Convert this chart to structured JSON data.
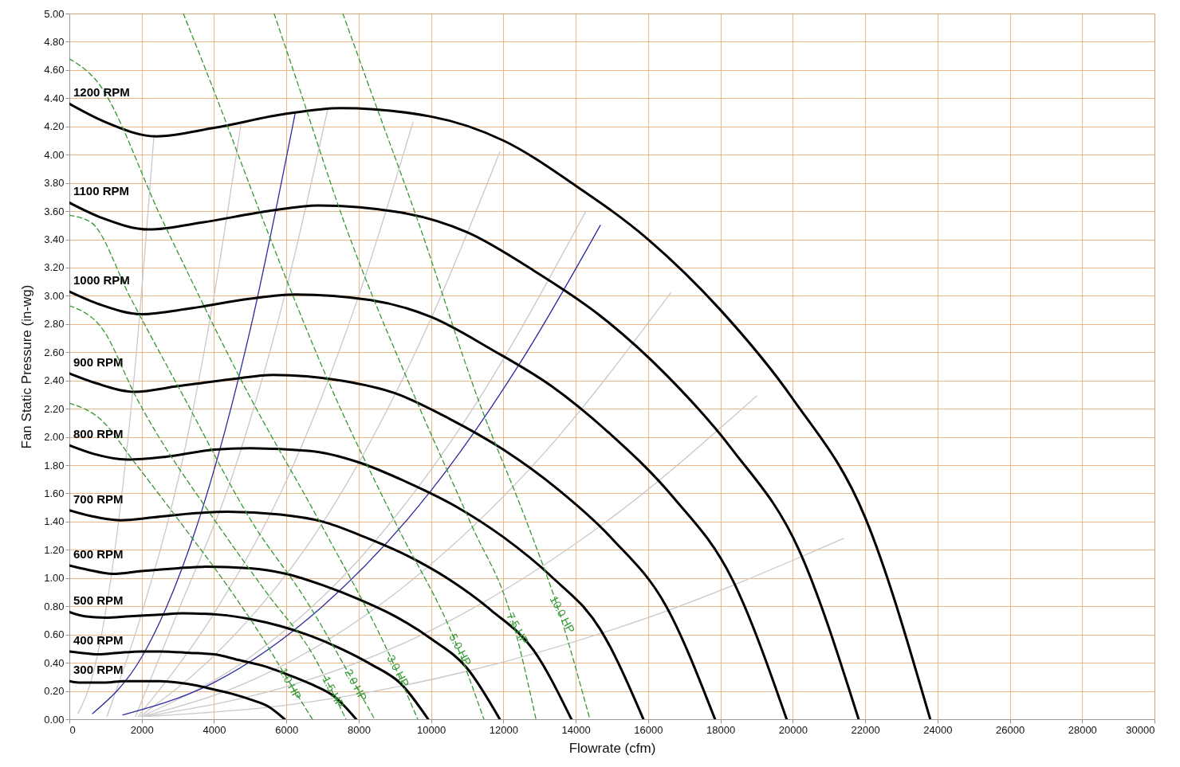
{
  "chart_data": {
    "type": "line",
    "xlabel": "Flowrate (cfm)",
    "ylabel": "Fan Static Pressure (in-wg)",
    "xlim": [
      0,
      30000
    ],
    "ylim": [
      0,
      5
    ],
    "xticks": [
      0,
      2000,
      4000,
      6000,
      8000,
      10000,
      12000,
      14000,
      16000,
      18000,
      20000,
      22000,
      24000,
      26000,
      28000,
      30000
    ],
    "yticks": [
      {
        "value": 0,
        "label": "0.00"
      },
      {
        "value": 0.2,
        "label": "0.20"
      },
      {
        "value": 0.4,
        "label": "0.40"
      },
      {
        "value": 0.6,
        "label": "0.60"
      },
      {
        "value": 0.8,
        "label": "0.80"
      },
      {
        "value": 1,
        "label": "1.00"
      },
      {
        "value": 1.2,
        "label": "1.20"
      },
      {
        "value": 1.4,
        "label": "1.40"
      },
      {
        "value": 1.6,
        "label": "1.60"
      },
      {
        "value": 1.8,
        "label": "1.80"
      },
      {
        "value": 2,
        "label": "2.00"
      },
      {
        "value": 2.2,
        "label": "2.20"
      },
      {
        "value": 2.4,
        "label": "2.40"
      },
      {
        "value": 2.6,
        "label": "2.60"
      },
      {
        "value": 2.8,
        "label": "2.80"
      },
      {
        "value": 3,
        "label": "3.00"
      },
      {
        "value": 3.2,
        "label": "3.20"
      },
      {
        "value": 3.4,
        "label": "3.40"
      },
      {
        "value": 3.6,
        "label": "3.60"
      },
      {
        "value": 3.8,
        "label": "3.80"
      },
      {
        "value": 4,
        "label": "4.00"
      },
      {
        "value": 4.2,
        "label": "4.20"
      },
      {
        "value": 4.4,
        "label": "4.40"
      },
      {
        "value": 4.6,
        "label": "4.60"
      },
      {
        "value": 4.8,
        "label": "4.80"
      },
      {
        "value": 5,
        "label": "5.00"
      }
    ],
    "grid": true,
    "line_style": "solid",
    "series": [
      {
        "color": "#c8c8c8",
        "x": [
          240,
          600,
          1200,
          1800,
          2340
        ],
        "values": [
          0.04,
          0.27,
          1.09,
          2.45,
          4.14
        ]
      },
      {
        "color": "#c8c8c8",
        "x": [
          1040,
          2000,
          3000,
          4000,
          4740
        ],
        "values": [
          0.02,
          0.75,
          1.69,
          3.0,
          4.21
        ]
      },
      {
        "color": "#c8c8c8",
        "x": [
          1830,
          3000,
          4500,
          6000,
          7140
        ],
        "values": [
          0.02,
          0.76,
          1.72,
          3.05,
          4.32
        ]
      },
      {
        "color": "#c8c8c8",
        "x": [
          1900,
          4000,
          6000,
          8000,
          9500
        ],
        "values": [
          0.02,
          0.75,
          1.69,
          3.0,
          4.23
        ]
      },
      {
        "color": "#c8c8c8",
        "x": [
          1950,
          4000,
          7000,
          10000,
          11900
        ],
        "values": [
          0.02,
          0.45,
          1.39,
          2.84,
          4.02
        ]
      },
      {
        "color": "#c8c8c8",
        "x": [
          2000,
          5000,
          8000,
          11000,
          14280
        ],
        "values": [
          0.02,
          0.44,
          1.13,
          2.14,
          3.6
        ]
      },
      {
        "color": "#c8c8c8",
        "x": [
          2050,
          5000,
          9000,
          13000,
          16620
        ],
        "values": [
          0.02,
          0.27,
          0.89,
          1.85,
          3.02
        ]
      },
      {
        "color": "#c8c8c8",
        "x": [
          2100,
          6000,
          10000,
          15000,
          19000
        ],
        "values": [
          0.02,
          0.23,
          0.63,
          1.43,
          2.29
        ]
      },
      {
        "color": "#c8c8c8",
        "x": [
          2150,
          6000,
          11000,
          16000,
          21400
        ],
        "values": [
          0.02,
          0.1,
          0.34,
          0.72,
          1.28
        ]
      },
      {
        "color": "#2b2b9e",
        "x": [
          640,
          2000,
          3500,
          5000,
          6240
        ],
        "values": [
          0.04,
          0.44,
          1.35,
          2.76,
          4.29
        ]
      },
      {
        "color": "#2b2b9e",
        "x": [
          1480,
          4000,
          7000,
          10000,
          12500,
          14680
        ],
        "values": [
          0.03,
          0.26,
          0.8,
          1.62,
          2.54,
          3.5
        ]
      },
      {
        "name": "1.0 HP",
        "color": "#339933",
        "line_style": "dashed",
        "x": [
          0,
          840,
          1830,
          3110,
          4300,
          5380,
          5970,
          6720
        ],
        "values": [
          2.24,
          2.13,
          1.81,
          1.38,
          0.97,
          0.56,
          0.31,
          0
        ]
      },
      {
        "name": "1.5 HP",
        "color": "#339933",
        "line_style": "dashed",
        "x": [
          0,
          930,
          1830,
          4100,
          5500,
          6770,
          7160,
          7650
        ],
        "values": [
          2.93,
          2.76,
          2.29,
          1.38,
          0.88,
          0.44,
          0.25,
          0
        ]
      },
      {
        "name": "2.0 HP",
        "color": "#339933",
        "line_style": "dashed",
        "x": [
          0,
          600,
          1700,
          3150,
          5090,
          6500,
          7780,
          8440
        ],
        "values": [
          3.57,
          3.52,
          2.98,
          2.29,
          1.38,
          0.86,
          0.3,
          0
        ]
      },
      {
        "name": "3.0 HP",
        "color": "#339933",
        "line_style": "dashed",
        "x": [
          0,
          730,
          2600,
          4980,
          6960,
          8950,
          9630
        ],
        "values": [
          4.68,
          4.53,
          3.52,
          2.29,
          1.38,
          0.4,
          0
        ]
      },
      {
        "name": "5.0 HP",
        "color": "#339933",
        "line_style": "dashed",
        "x": [
          3150,
          3880,
          5380,
          7340,
          9040,
          10670,
          11460
        ],
        "values": [
          5.0,
          4.53,
          3.52,
          2.29,
          1.38,
          0.55,
          0
        ]
      },
      {
        "name": "7.5 HP",
        "color": "#339933",
        "line_style": "dashed",
        "x": [
          5660,
          6280,
          7600,
          9540,
          11110,
          12250,
          12900
        ],
        "values": [
          5.0,
          4.53,
          3.52,
          2.29,
          1.38,
          0.7,
          0
        ]
      },
      {
        "name": "10.0 HP",
        "color": "#339933",
        "line_style": "dashed",
        "x": [
          7560,
          8220,
          9650,
          11310,
          12670,
          13490,
          14390
        ],
        "values": [
          5.0,
          4.53,
          3.52,
          2.26,
          1.38,
          0.8,
          0
        ]
      },
      {
        "name": "300 RPM",
        "color": "#000000",
        "x": [
          0,
          250,
          600,
          1000,
          1500,
          1880,
          2500,
          3000,
          3500,
          4000,
          4500,
          5000,
          5500,
          5950
        ],
        "values": [
          0.27,
          0.26,
          0.26,
          0.26,
          0.27,
          0.27,
          0.27,
          0.26,
          0.24,
          0.21,
          0.18,
          0.14,
          0.09,
          0
        ]
      },
      {
        "name": "400 RPM",
        "color": "#000000",
        "x": [
          0,
          330,
          800,
          1330,
          2000,
          2500,
          3330,
          4000,
          4670,
          5330,
          6000,
          6670,
          7330,
          7930
        ],
        "values": [
          0.48,
          0.47,
          0.46,
          0.47,
          0.48,
          0.48,
          0.47,
          0.46,
          0.42,
          0.38,
          0.32,
          0.25,
          0.16,
          0
        ]
      },
      {
        "name": "500 RPM",
        "color": "#000000",
        "x": [
          0,
          420,
          1000,
          1670,
          2500,
          3130,
          4170,
          5000,
          5830,
          6670,
          7500,
          8330,
          9170,
          9920
        ],
        "values": [
          0.76,
          0.73,
          0.72,
          0.73,
          0.74,
          0.75,
          0.74,
          0.71,
          0.66,
          0.59,
          0.5,
          0.39,
          0.25,
          0
        ]
      },
      {
        "name": "600 RPM",
        "color": "#000000",
        "x": [
          0,
          500,
          1200,
          2000,
          3000,
          3750,
          5000,
          6000,
          7000,
          8000,
          9000,
          10000,
          11000,
          11900
        ],
        "values": [
          1.09,
          1.06,
          1.03,
          1.05,
          1.07,
          1.08,
          1.07,
          1.03,
          0.95,
          0.85,
          0.73,
          0.57,
          0.36,
          0
        ]
      },
      {
        "name": "700 RPM",
        "color": "#000000",
        "x": [
          0,
          580,
          1400,
          2330,
          3500,
          4380,
          5830,
          7000,
          8170,
          9330,
          10500,
          11670,
          12830,
          13880
        ],
        "values": [
          1.48,
          1.44,
          1.41,
          1.43,
          1.46,
          1.47,
          1.45,
          1.4,
          1.29,
          1.16,
          0.99,
          0.77,
          0.49,
          0
        ]
      },
      {
        "name": "800 RPM",
        "color": "#000000",
        "x": [
          0,
          670,
          1600,
          2670,
          4000,
          5000,
          6670,
          8000,
          9330,
          10670,
          12000,
          13330,
          14670,
          15870
        ],
        "values": [
          1.94,
          1.88,
          1.84,
          1.86,
          1.91,
          1.92,
          1.9,
          1.82,
          1.68,
          1.51,
          1.29,
          1.01,
          0.64,
          0
        ]
      },
      {
        "name": "900 RPM",
        "color": "#000000",
        "x": [
          0,
          750,
          1800,
          3000,
          4500,
          5630,
          7500,
          9000,
          10500,
          12000,
          13500,
          15000,
          16500,
          17850
        ],
        "values": [
          2.45,
          2.38,
          2.32,
          2.36,
          2.41,
          2.44,
          2.4,
          2.31,
          2.13,
          1.91,
          1.63,
          1.28,
          0.8,
          0
        ]
      },
      {
        "name": "1000 RPM",
        "color": "#000000",
        "x": [
          0,
          830,
          2000,
          3330,
          5000,
          6250,
          8330,
          10000,
          11670,
          13330,
          15000,
          16670,
          18330,
          19830
        ],
        "values": [
          3.03,
          2.94,
          2.87,
          2.91,
          2.98,
          3.01,
          2.97,
          2.85,
          2.62,
          2.36,
          2.01,
          1.58,
          0.99,
          0
        ]
      },
      {
        "name": "1100 RPM",
        "color": "#000000",
        "x": [
          0,
          920,
          2200,
          3670,
          5500,
          6880,
          9170,
          11000,
          12830,
          14670,
          16500,
          18330,
          20170,
          21820
        ],
        "values": [
          3.66,
          3.55,
          3.47,
          3.52,
          3.6,
          3.64,
          3.59,
          3.45,
          3.18,
          2.86,
          2.44,
          1.91,
          1.2,
          0
        ]
      },
      {
        "name": "1200 RPM",
        "color": "#000000",
        "x": [
          0,
          1000,
          2400,
          4000,
          6000,
          7500,
          10000,
          12000,
          14000,
          16000,
          18000,
          20000,
          22000,
          23800
        ],
        "values": [
          4.36,
          4.23,
          4.13,
          4.19,
          4.29,
          4.33,
          4.27,
          4.1,
          3.78,
          3.4,
          2.9,
          2.27,
          1.43,
          0
        ]
      }
    ]
  }
}
